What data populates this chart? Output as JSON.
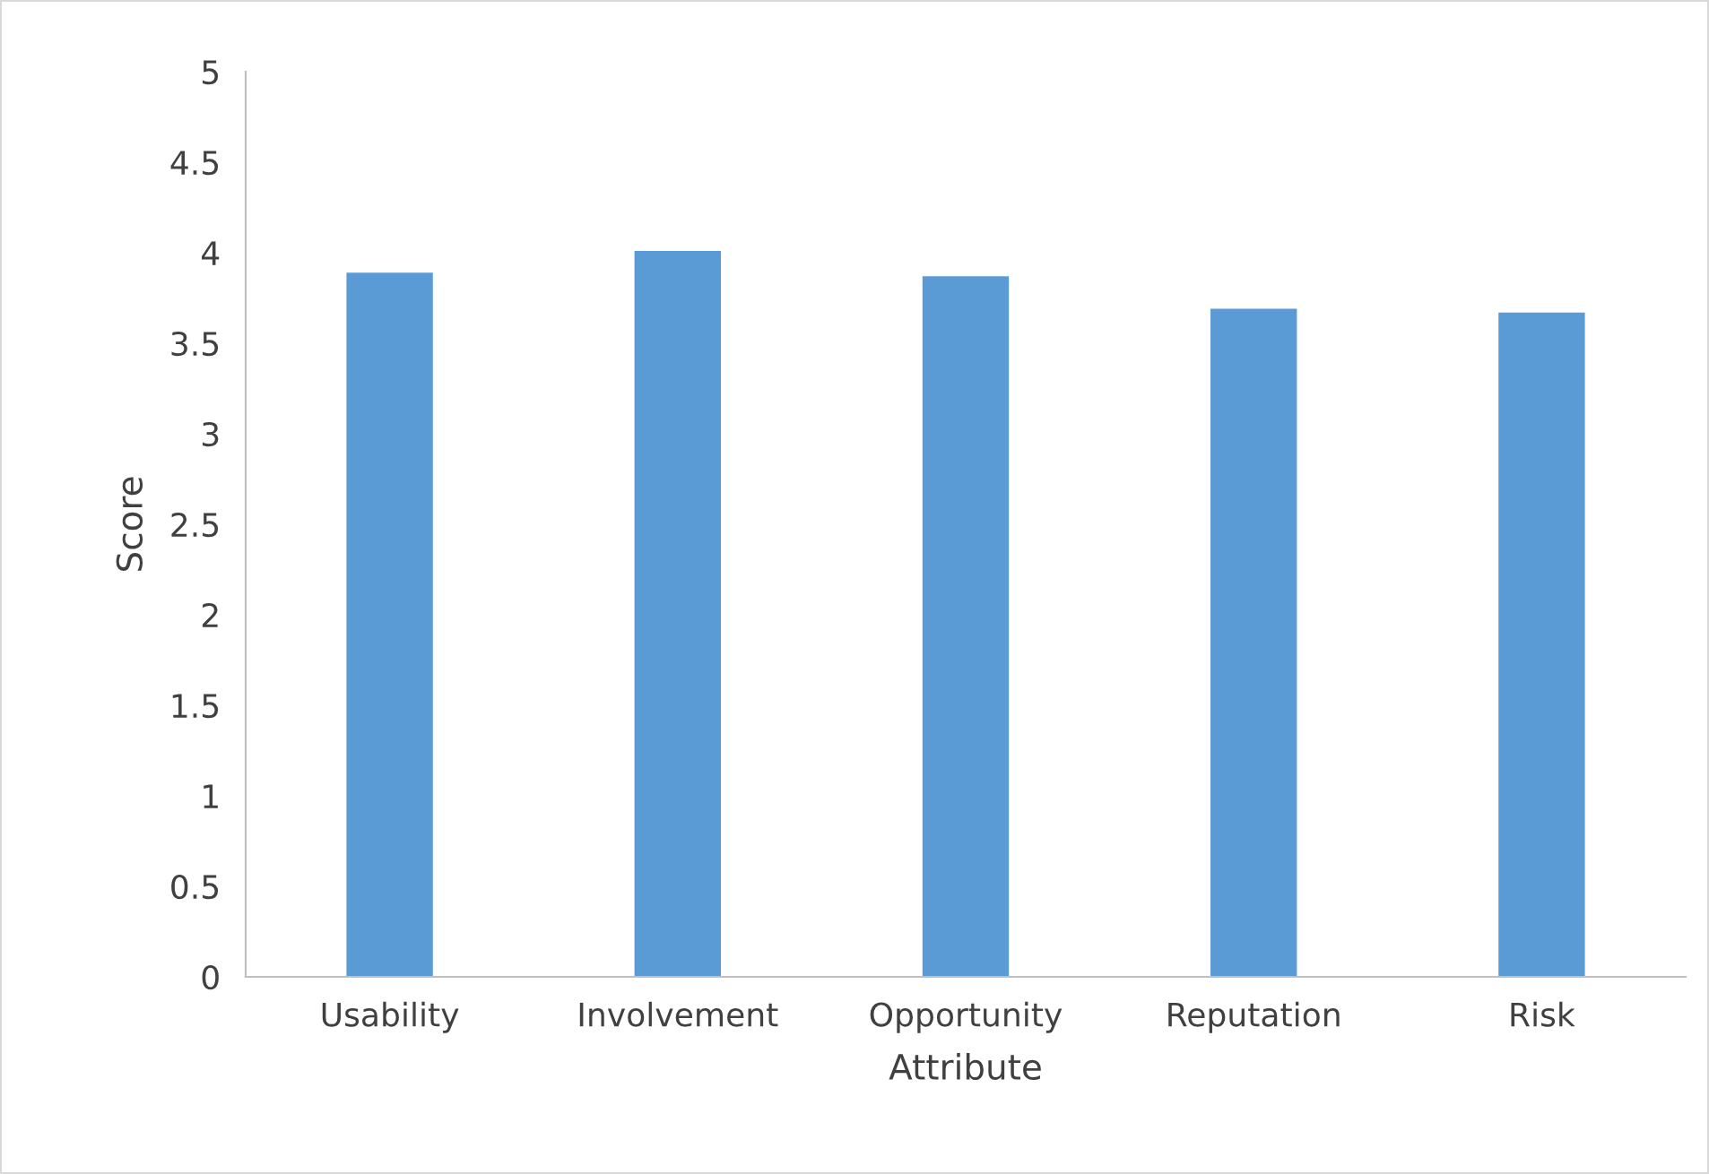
{
  "chart_data": {
    "type": "bar",
    "xlabel": "Attribute",
    "ylabel": "Score",
    "categories": [
      "Usability",
      "Involvement",
      "Opportunity",
      "Reputation",
      "Risk"
    ],
    "values": [
      3.89,
      4.01,
      3.87,
      3.69,
      3.67
    ],
    "color": "#5b9bd5",
    "ylim": [
      0,
      5
    ],
    "yticks": [
      0,
      0.5,
      1,
      1.5,
      2,
      2.5,
      3,
      3.5,
      4,
      4.5,
      5
    ],
    "grid": false,
    "legend": false
  }
}
